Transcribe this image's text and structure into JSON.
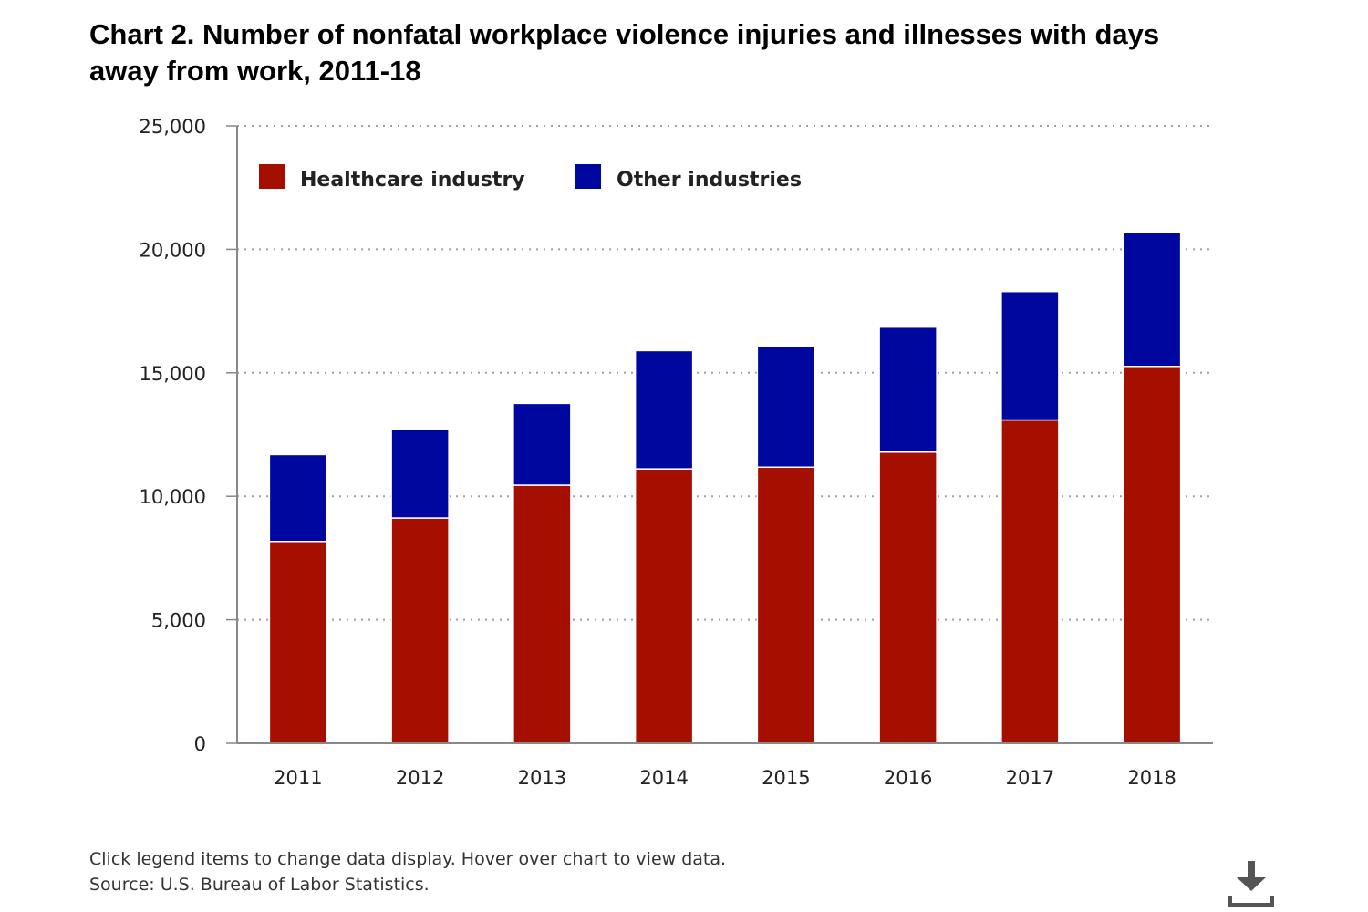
{
  "title": "Chart 2. Number of nonfatal workplace violence injuries and illnesses with days away from work, 2011-18",
  "footer": {
    "note": "Click legend items to change data display. Hover over chart to view data.",
    "source": "Source: U.S. Bureau of Labor Statistics."
  },
  "download": {
    "icon": "download-icon"
  },
  "colors": {
    "healthcare": "#a50f00",
    "other": "#00079f",
    "grid": "#9aa0b0",
    "axis": "#888888"
  },
  "chart_data": {
    "type": "bar",
    "stacked": true,
    "categories": [
      "2011",
      "2012",
      "2013",
      "2014",
      "2015",
      "2016",
      "2017",
      "2018"
    ],
    "series": [
      {
        "name": "Healthcare industry",
        "values": [
          8170,
          9120,
          10450,
          11110,
          11180,
          11790,
          13090,
          15260
        ],
        "color": "#a50f00"
      },
      {
        "name": "Other industries",
        "values": [
          3520,
          3600,
          3310,
          4790,
          4880,
          5060,
          5200,
          5440
        ],
        "color": "#00079f"
      }
    ],
    "ylim": [
      0,
      25000
    ],
    "yticks": [
      "0",
      "5,000",
      "10,000",
      "15,000",
      "20,000",
      "25,000"
    ],
    "ytick_values": [
      0,
      5000,
      10000,
      15000,
      20000,
      25000
    ],
    "grid": true,
    "legend_position": "top-left"
  }
}
